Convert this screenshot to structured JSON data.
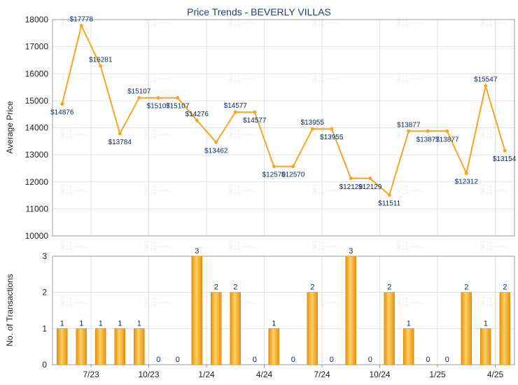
{
  "chart_data": [
    {
      "type": "line",
      "title": "Price Trends - BEVERLY VILLAS",
      "ylabel": "Average Price",
      "ylim": [
        10000,
        18000
      ],
      "yticks": [
        10000,
        11000,
        12000,
        13000,
        14000,
        15000,
        16000,
        17000,
        18000
      ],
      "grid": true,
      "color": "#f5a623",
      "point_labels": [
        "$14876",
        "$17778",
        "$16281",
        "$13784",
        "$15107",
        "$15107",
        "$15107",
        "$14276",
        "$13462",
        "$14577",
        "$14577",
        "$12570",
        "$12570",
        "$13955",
        "$13955",
        "$12129",
        "$12129",
        "$11511",
        "$13877",
        "$13877",
        "$13877",
        "$12312",
        "$15547",
        "$13154"
      ],
      "values": [
        14876,
        17778,
        16281,
        13784,
        15107,
        15107,
        15107,
        14276,
        13462,
        14577,
        14577,
        12570,
        12570,
        13955,
        13955,
        12129,
        12129,
        11511,
        13877,
        13877,
        13877,
        12312,
        15547,
        13154
      ]
    },
    {
      "type": "bar",
      "ylabel": "No. of Transactions",
      "ylim": [
        0,
        3
      ],
      "yticks": [
        0,
        1,
        2,
        3
      ],
      "grid": true,
      "color": "#f5a623",
      "values": [
        1,
        1,
        1,
        1,
        1,
        0,
        0,
        3,
        2,
        2,
        0,
        1,
        0,
        2,
        0,
        3,
        0,
        2,
        1,
        0,
        0,
        2,
        1,
        2
      ],
      "value_labels": [
        "1",
        "1",
        "1",
        "1",
        "1",
        "0",
        "0",
        "3",
        "2",
        "2",
        "0",
        "1",
        "0",
        "2",
        "0",
        "3",
        "0",
        "2",
        "1",
        "0",
        "0",
        "2",
        "1",
        "2"
      ]
    }
  ],
  "x_axis": {
    "tick_labels": [
      "7/23",
      "10/23",
      "1/24",
      "4/24",
      "7/24",
      "10/24",
      "1/25",
      "4/25"
    ],
    "tick_positions": [
      2,
      5,
      8,
      11,
      14,
      17,
      20,
      23
    ]
  },
  "watermark": "科一"
}
